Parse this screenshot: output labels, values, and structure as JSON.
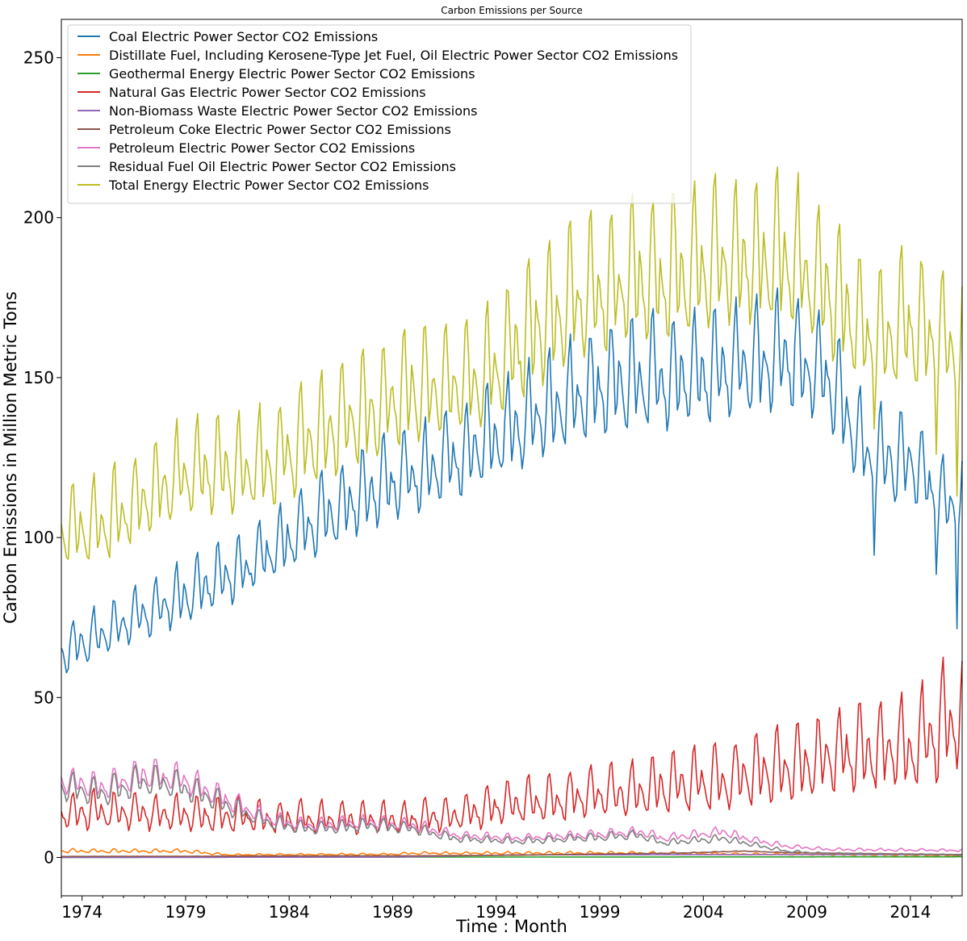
{
  "chart_data": {
    "type": "line",
    "title": "Carbon Emissions per Source",
    "xlabel": "Time : Month",
    "ylabel": "Carbon Emissions in Million Metric Tons",
    "xlim": [
      1973.0,
      2016.5
    ],
    "ylim": [
      -12,
      262
    ],
    "x_ticks": [
      1974,
      1979,
      1984,
      1989,
      1994,
      1999,
      2004,
      2009,
      2014
    ],
    "y_ticks": [
      0,
      50,
      100,
      150,
      200,
      250
    ],
    "legend_position": "upper-left",
    "grid": false,
    "series": [
      {
        "name": "Coal Electric Power Sector CO2 Emissions",
        "color": "#1f77b4",
        "annual": [
          [
            1973,
            64
          ],
          [
            1976,
            73
          ],
          [
            1979,
            82
          ],
          [
            1982,
            91
          ],
          [
            1985,
            104
          ],
          [
            1988,
            115
          ],
          [
            1991,
            122
          ],
          [
            1994,
            131
          ],
          [
            1997,
            142
          ],
          [
            2000,
            149
          ],
          [
            2003,
            150
          ],
          [
            2006,
            153
          ],
          [
            2008,
            157
          ],
          [
            2010,
            150
          ],
          [
            2012,
            125
          ],
          [
            2014,
            124
          ],
          [
            2015.5,
            110
          ],
          [
            2016.5,
            112
          ]
        ],
        "seasonal_amplitude": 0.11,
        "dips": [
          [
            2012.25,
            94.5
          ],
          [
            2015.25,
            88.5
          ],
          [
            2016.25,
            71.5
          ]
        ]
      },
      {
        "name": "Distillate Fuel, Including Kerosene-Type Jet Fuel, Oil Electric Power Sector CO2 Emissions",
        "color": "#ff7f0e",
        "annual": [
          [
            1973,
            2.0
          ],
          [
            1979,
            2.0
          ],
          [
            1981,
            0.8
          ],
          [
            1989,
            1.0
          ],
          [
            1990,
            1.3
          ],
          [
            2001,
            1.4
          ],
          [
            2005,
            1.1
          ],
          [
            2016.5,
            0.6
          ]
        ],
        "seasonal_amplitude": 0.3,
        "dips": []
      },
      {
        "name": "Geothermal Energy Electric Power Sector CO2 Emissions",
        "color": "#2ca02c",
        "annual": [
          [
            1973,
            0.0
          ],
          [
            1990,
            0.1
          ],
          [
            2016.5,
            0.2
          ]
        ],
        "seasonal_amplitude": 0.0,
        "dips": []
      },
      {
        "name": "Natural Gas Electric Power Sector CO2 Emissions",
        "color": "#d62728",
        "annual": [
          [
            1973,
            14
          ],
          [
            1976,
            14
          ],
          [
            1980,
            13
          ],
          [
            1983,
            12
          ],
          [
            1987,
            12
          ],
          [
            1990,
            12
          ],
          [
            1993,
            14
          ],
          [
            1995,
            17
          ],
          [
            1998,
            19
          ],
          [
            2001,
            21
          ],
          [
            2003,
            23
          ],
          [
            2005,
            24
          ],
          [
            2008,
            28
          ],
          [
            2010,
            31
          ],
          [
            2012,
            34
          ],
          [
            2014,
            34
          ],
          [
            2015.5,
            40
          ],
          [
            2016.5,
            46
          ]
        ],
        "seasonal_amplitude": 0.4,
        "dips": []
      },
      {
        "name": "Non-Biomass Waste Electric Power Sector CO2 Emissions",
        "color": "#9467bd",
        "annual": [
          [
            1973,
            0.0
          ],
          [
            1989,
            0.1
          ],
          [
            1995,
            0.8
          ],
          [
            2016.5,
            0.9
          ]
        ],
        "seasonal_amplitude": 0.0,
        "dips": []
      },
      {
        "name": "Petroleum Coke Electric Power Sector CO2 Emissions",
        "color": "#8c564b",
        "annual": [
          [
            1973,
            0.3
          ],
          [
            1990,
            0.5
          ],
          [
            1995,
            0.7
          ],
          [
            2003,
            1.4
          ],
          [
            2006,
            2.0
          ],
          [
            2008,
            1.5
          ],
          [
            2016.5,
            0.9
          ]
        ],
        "seasonal_amplitude": 0.05,
        "dips": []
      },
      {
        "name": "Petroleum Electric Power Sector CO2 Emissions",
        "color": "#e377c2",
        "annual": [
          [
            1973,
            24
          ],
          [
            1975,
            22
          ],
          [
            1977,
            26
          ],
          [
            1979,
            24
          ],
          [
            1981,
            18
          ],
          [
            1983,
            12
          ],
          [
            1985,
            10
          ],
          [
            1988,
            11
          ],
          [
            1990,
            10
          ],
          [
            1992,
            7
          ],
          [
            1995,
            6
          ],
          [
            1998,
            7
          ],
          [
            2001,
            8
          ],
          [
            2002,
            6
          ],
          [
            2005,
            8
          ],
          [
            2006,
            6
          ],
          [
            2008,
            3.5
          ],
          [
            2010,
            2.5
          ],
          [
            2016.5,
            2.2
          ]
        ],
        "seasonal_amplitude": 0.18,
        "dips": []
      },
      {
        "name": "Residual Fuel Oil Electric Power Sector CO2 Emissions",
        "color": "#7f7f7f",
        "annual": [
          [
            1973,
            22
          ],
          [
            1975,
            20
          ],
          [
            1977,
            24
          ],
          [
            1979,
            22
          ],
          [
            1981,
            16
          ],
          [
            1983,
            11
          ],
          [
            1985,
            9
          ],
          [
            1988,
            10
          ],
          [
            1990,
            9
          ],
          [
            1992,
            6
          ],
          [
            1995,
            5
          ],
          [
            1998,
            6
          ],
          [
            2001,
            7
          ],
          [
            2002,
            4.5
          ],
          [
            2005,
            6
          ],
          [
            2006,
            4.5
          ],
          [
            2008,
            2
          ],
          [
            2010,
            1.2
          ],
          [
            2016.5,
            0.8
          ]
        ],
        "seasonal_amplitude": 0.2,
        "dips": []
      },
      {
        "name": "Total Energy Electric Power Sector CO2 Emissions",
        "color": "#bcbd22",
        "annual": [
          [
            1973,
            102
          ],
          [
            1975,
            104
          ],
          [
            1977,
            112
          ],
          [
            1979,
            120
          ],
          [
            1981,
            122
          ],
          [
            1983,
            123
          ],
          [
            1986,
            134
          ],
          [
            1988,
            139
          ],
          [
            1990,
            146
          ],
          [
            1992,
            147
          ],
          [
            1994,
            153
          ],
          [
            1996,
            166
          ],
          [
            1998,
            175
          ],
          [
            2000,
            179
          ],
          [
            2002,
            181
          ],
          [
            2004,
            185
          ],
          [
            2006,
            187
          ],
          [
            2008,
            187
          ],
          [
            2010,
            178
          ],
          [
            2012,
            162
          ],
          [
            2014,
            166
          ],
          [
            2015.5,
            160
          ],
          [
            2016.5,
            158
          ]
        ],
        "seasonal_amplitude": 0.12,
        "dips": [
          [
            2012.25,
            134
          ],
          [
            2015.25,
            126
          ],
          [
            2016.25,
            113
          ]
        ]
      }
    ]
  }
}
